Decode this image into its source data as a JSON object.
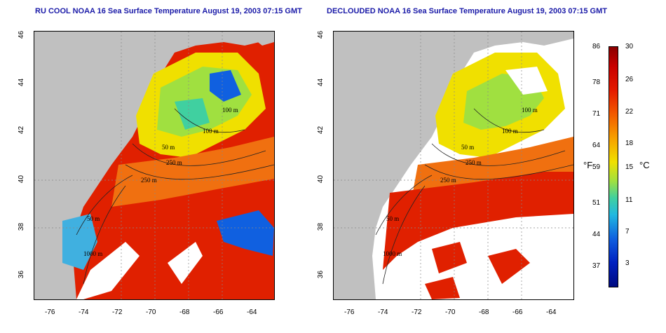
{
  "titles": {
    "left": "RU COOL NOAA 16 Sea Surface Temperature August 19, 2003 07:15 GMT",
    "right": "DECLOUDED NOAA 16 Sea Surface Temperature August 19, 2003 07:15 GMT"
  },
  "axes": {
    "x_ticks": [
      "-76",
      "-74",
      "-72",
      "-70",
      "-68",
      "-66",
      "-64"
    ],
    "y_ticks": [
      "46",
      "44",
      "42",
      "40",
      "38",
      "36"
    ]
  },
  "contours": {
    "labels_left": [
      "100 m",
      "100 m",
      "50 m",
      "250 m",
      "250 m",
      "50 m",
      "1000 m"
    ],
    "labels_right": [
      "100 m",
      "100 m",
      "50 m",
      "250 m",
      "250 m",
      "50 m",
      "1000 m"
    ]
  },
  "colorbar": {
    "fahrenheit": [
      "86",
      "78",
      "71",
      "64",
      "59",
      "51",
      "44",
      "37"
    ],
    "celsius": [
      "30",
      "26",
      "22",
      "18",
      "15",
      "11",
      "7",
      "3"
    ],
    "unit_f": "°F",
    "unit_c": "°C"
  },
  "colors": {
    "land": "#c0c0c0",
    "hot": "#e02000",
    "warm": "#f07010",
    "mild": "#f0e000",
    "cool": "#40d0a0",
    "cold": "#1060e0",
    "title": "#1a1aa8"
  }
}
